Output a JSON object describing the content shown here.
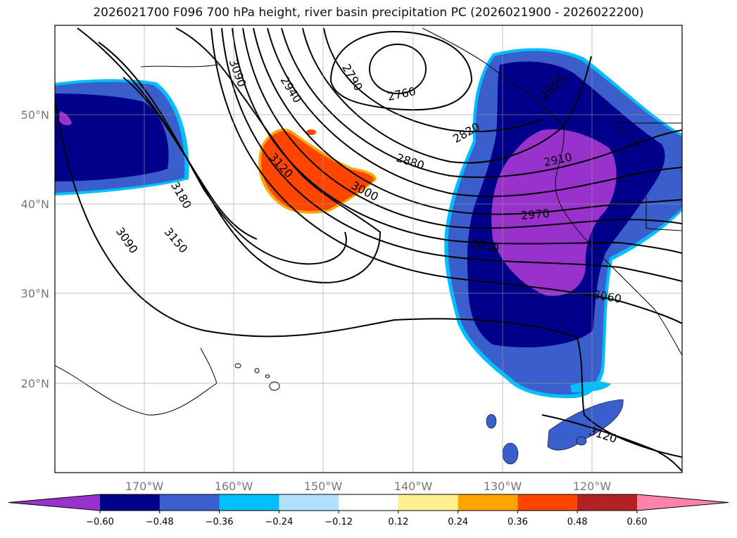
{
  "title": "2026021700 F096 700 hPa height, river basin precipitation PC (2026021900 - 2026022200)",
  "map": {
    "lon_ticks": [
      "170°W",
      "160°W",
      "150°W",
      "140°W",
      "130°W",
      "120°W"
    ],
    "lat_ticks": [
      "50°N",
      "40°N",
      "30°N",
      "20°N"
    ]
  },
  "contour_labels": [
    {
      "text": "2760",
      "id": "c2760"
    },
    {
      "text": "2790",
      "id": "c2790"
    },
    {
      "text": "2820",
      "id": "c2820"
    },
    {
      "text": "2850",
      "id": "c2850"
    },
    {
      "text": "2880",
      "id": "c2880"
    },
    {
      "text": "2910",
      "id": "c2910"
    },
    {
      "text": "2940",
      "id": "c2940"
    },
    {
      "text": "2970",
      "id": "c2970"
    },
    {
      "text": "3000",
      "id": "c3000"
    },
    {
      "text": "3030",
      "id": "c3030"
    },
    {
      "text": "3060",
      "id": "c3060"
    },
    {
      "text": "3090",
      "id": "c3090a"
    },
    {
      "text": "3090",
      "id": "c3090b"
    },
    {
      "text": "3120",
      "id": "c3120a"
    },
    {
      "text": "3120",
      "id": "c3120b"
    },
    {
      "text": "3150",
      "id": "c3150"
    },
    {
      "text": "3180",
      "id": "c3180"
    }
  ],
  "colorbar": {
    "colors": [
      "#9932cc",
      "#00008b",
      "#3a5fcd",
      "#00bfff",
      "#b0e2ff",
      "#ffffff",
      "#fff08f",
      "#ffa500",
      "#ff4500",
      "#b22222",
      "#ff82ab"
    ],
    "labels": [
      "−0.60",
      "−0.48",
      "−0.36",
      "−0.24",
      "−0.12",
      "0.12",
      "0.24",
      "0.36",
      "0.48",
      "0.60"
    ]
  }
}
